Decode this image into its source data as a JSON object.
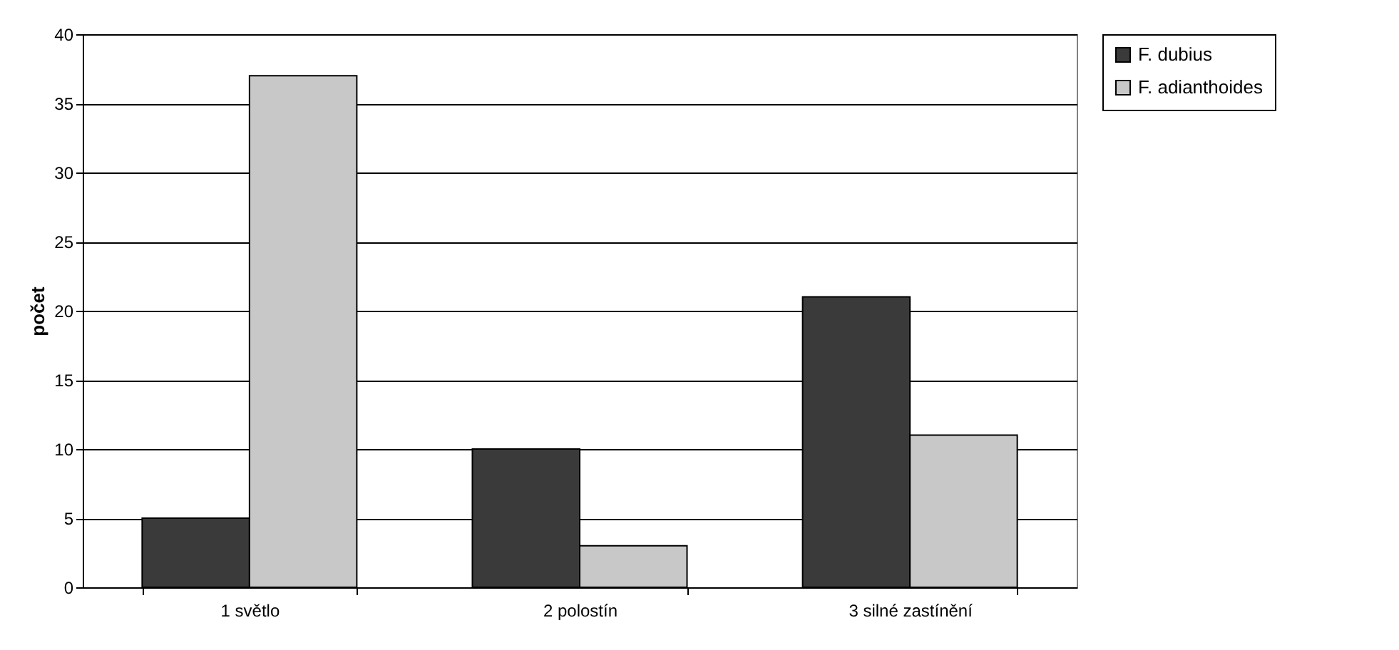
{
  "chart_data": {
    "type": "bar",
    "ylabel": "počet",
    "categories": [
      "1 světlo",
      "2 polostín",
      "3 silné zastínění"
    ],
    "series": [
      {
        "name": "F. dubius",
        "color": "#3a3a3a",
        "values": [
          5,
          10,
          21
        ]
      },
      {
        "name": "F. adianthoides",
        "color": "#c8c8c8",
        "values": [
          37,
          3,
          11
        ]
      }
    ],
    "ylim": [
      0,
      40
    ],
    "yticks": [
      0,
      5,
      10,
      15,
      20,
      25,
      30,
      35,
      40
    ],
    "grid": "y",
    "legend": "right"
  }
}
